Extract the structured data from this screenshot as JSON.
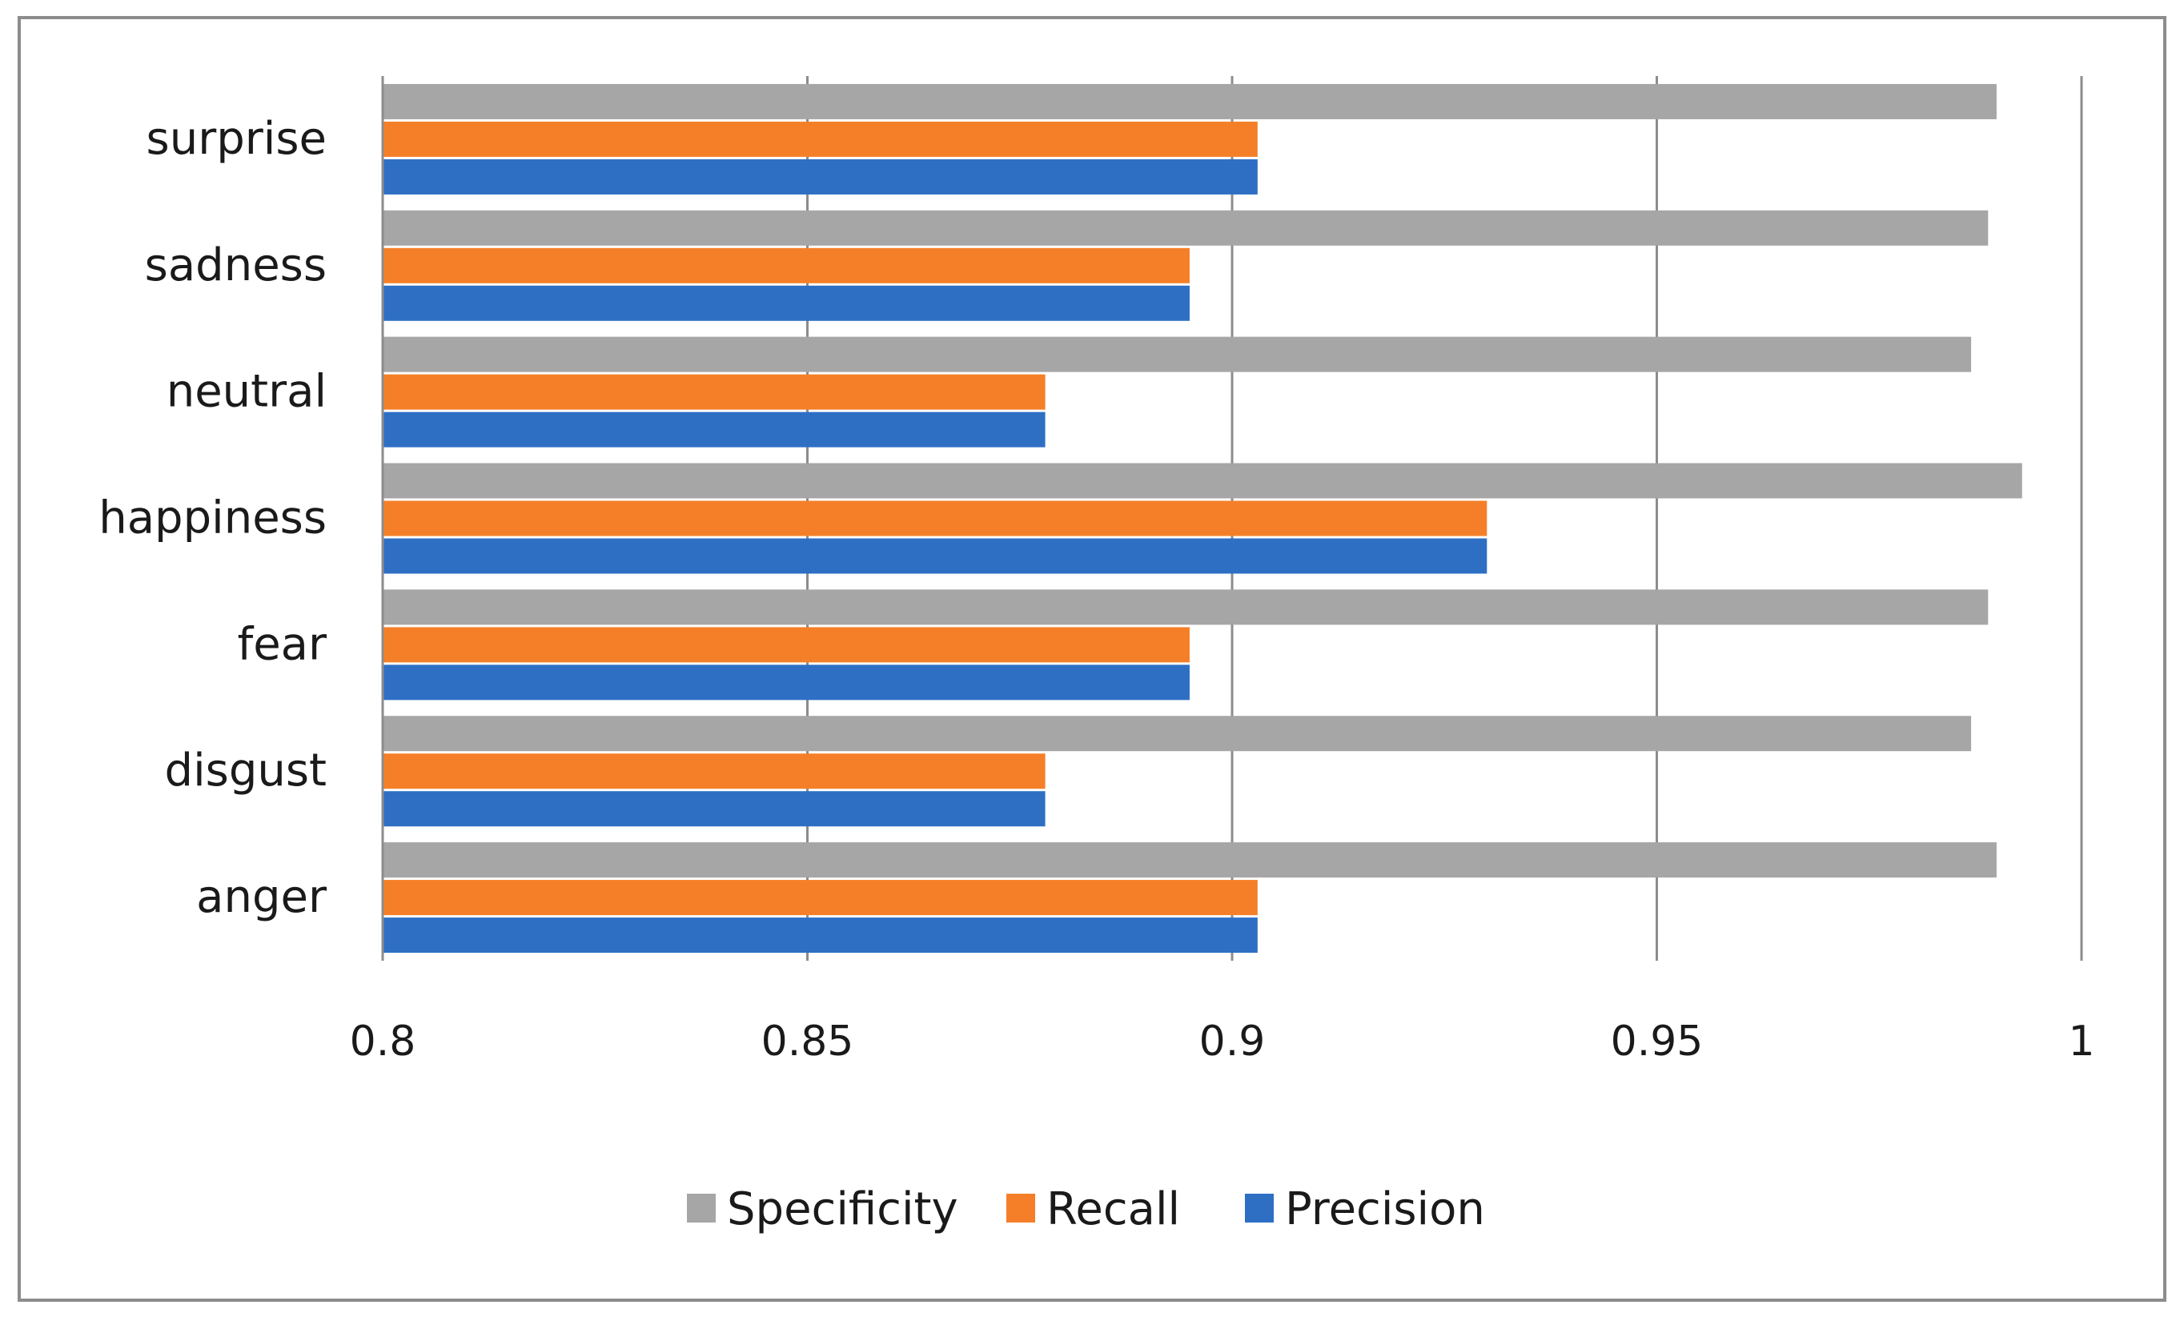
{
  "chart_data": {
    "type": "bar",
    "orientation": "horizontal",
    "categories": [
      "anger",
      "disgust",
      "fear",
      "happiness",
      "neutral",
      "sadness",
      "surprise"
    ],
    "series": [
      {
        "name": "Precision",
        "color": "#2e6fc4",
        "values": [
          0.903,
          0.878,
          0.895,
          0.93,
          0.878,
          0.895,
          0.903
        ]
      },
      {
        "name": "Recall",
        "color": "#f57f28",
        "values": [
          0.903,
          0.878,
          0.895,
          0.93,
          0.878,
          0.895,
          0.903
        ]
      },
      {
        "name": "Specificity",
        "color": "#a6a6a6",
        "values": [
          0.99,
          0.987,
          0.989,
          0.993,
          0.987,
          0.989,
          0.99
        ]
      }
    ],
    "xlim": [
      0.8,
      1.0
    ],
    "xticks": [
      "0.8",
      "0.85",
      "0.9",
      "0.95",
      "1"
    ],
    "grid": "vertical",
    "legend_position": "bottom",
    "legend_order": [
      "Specificity",
      "Recall",
      "Precision"
    ]
  }
}
